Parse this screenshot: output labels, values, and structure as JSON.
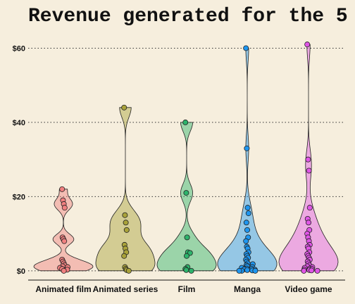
{
  "chart_data": {
    "type": "violin",
    "title": "Revenue generated for the 5",
    "xlabel": "",
    "ylabel": "",
    "ylim": [
      -2.5,
      63.5
    ],
    "y_ticks": [
      0,
      20,
      40,
      60
    ],
    "y_tick_labels": [
      "$0",
      "$20",
      "$40",
      "$60"
    ],
    "grid": "horizontal-dotted",
    "legend": "none",
    "categories": [
      "Animated film",
      "Animated series",
      "Film",
      "Manga",
      "Video game"
    ],
    "colors": [
      "#f08080",
      "#a9a23a",
      "#2db36b",
      "#1e96f0",
      "#e055e6"
    ],
    "series": [
      {
        "points": [
          22,
          19,
          18,
          17,
          9,
          8.5,
          8,
          3,
          2.5,
          2,
          1.5,
          1.2,
          1,
          0.8,
          0.5,
          0.3,
          0
        ]
      },
      {
        "points": [
          44,
          15,
          13,
          11,
          7,
          6,
          5,
          4,
          1,
          0.5,
          0.2,
          0
        ]
      },
      {
        "points": [
          40,
          21,
          9,
          5,
          4.8,
          4,
          1,
          0.5,
          0.2,
          0
        ]
      },
      {
        "points": [
          60,
          33,
          17,
          15.5,
          13,
          11,
          9,
          8,
          6.5,
          6,
          5,
          4.5,
          4,
          3.5,
          3,
          2.5,
          2,
          1.8,
          1.5,
          1.2,
          1,
          0.8,
          0.6,
          0.5,
          0.4,
          0.3,
          0.2,
          0.1,
          0,
          0,
          0
        ]
      },
      {
        "points": [
          61,
          30,
          27,
          17,
          14,
          13,
          11,
          10,
          9,
          8,
          7,
          6.5,
          6,
          5,
          4.5,
          4,
          3.5,
          3,
          2.5,
          2,
          1.5,
          1.2,
          1,
          0.8,
          0.6,
          0.5,
          0.3,
          0.2,
          0.1,
          0,
          0
        ]
      }
    ]
  }
}
